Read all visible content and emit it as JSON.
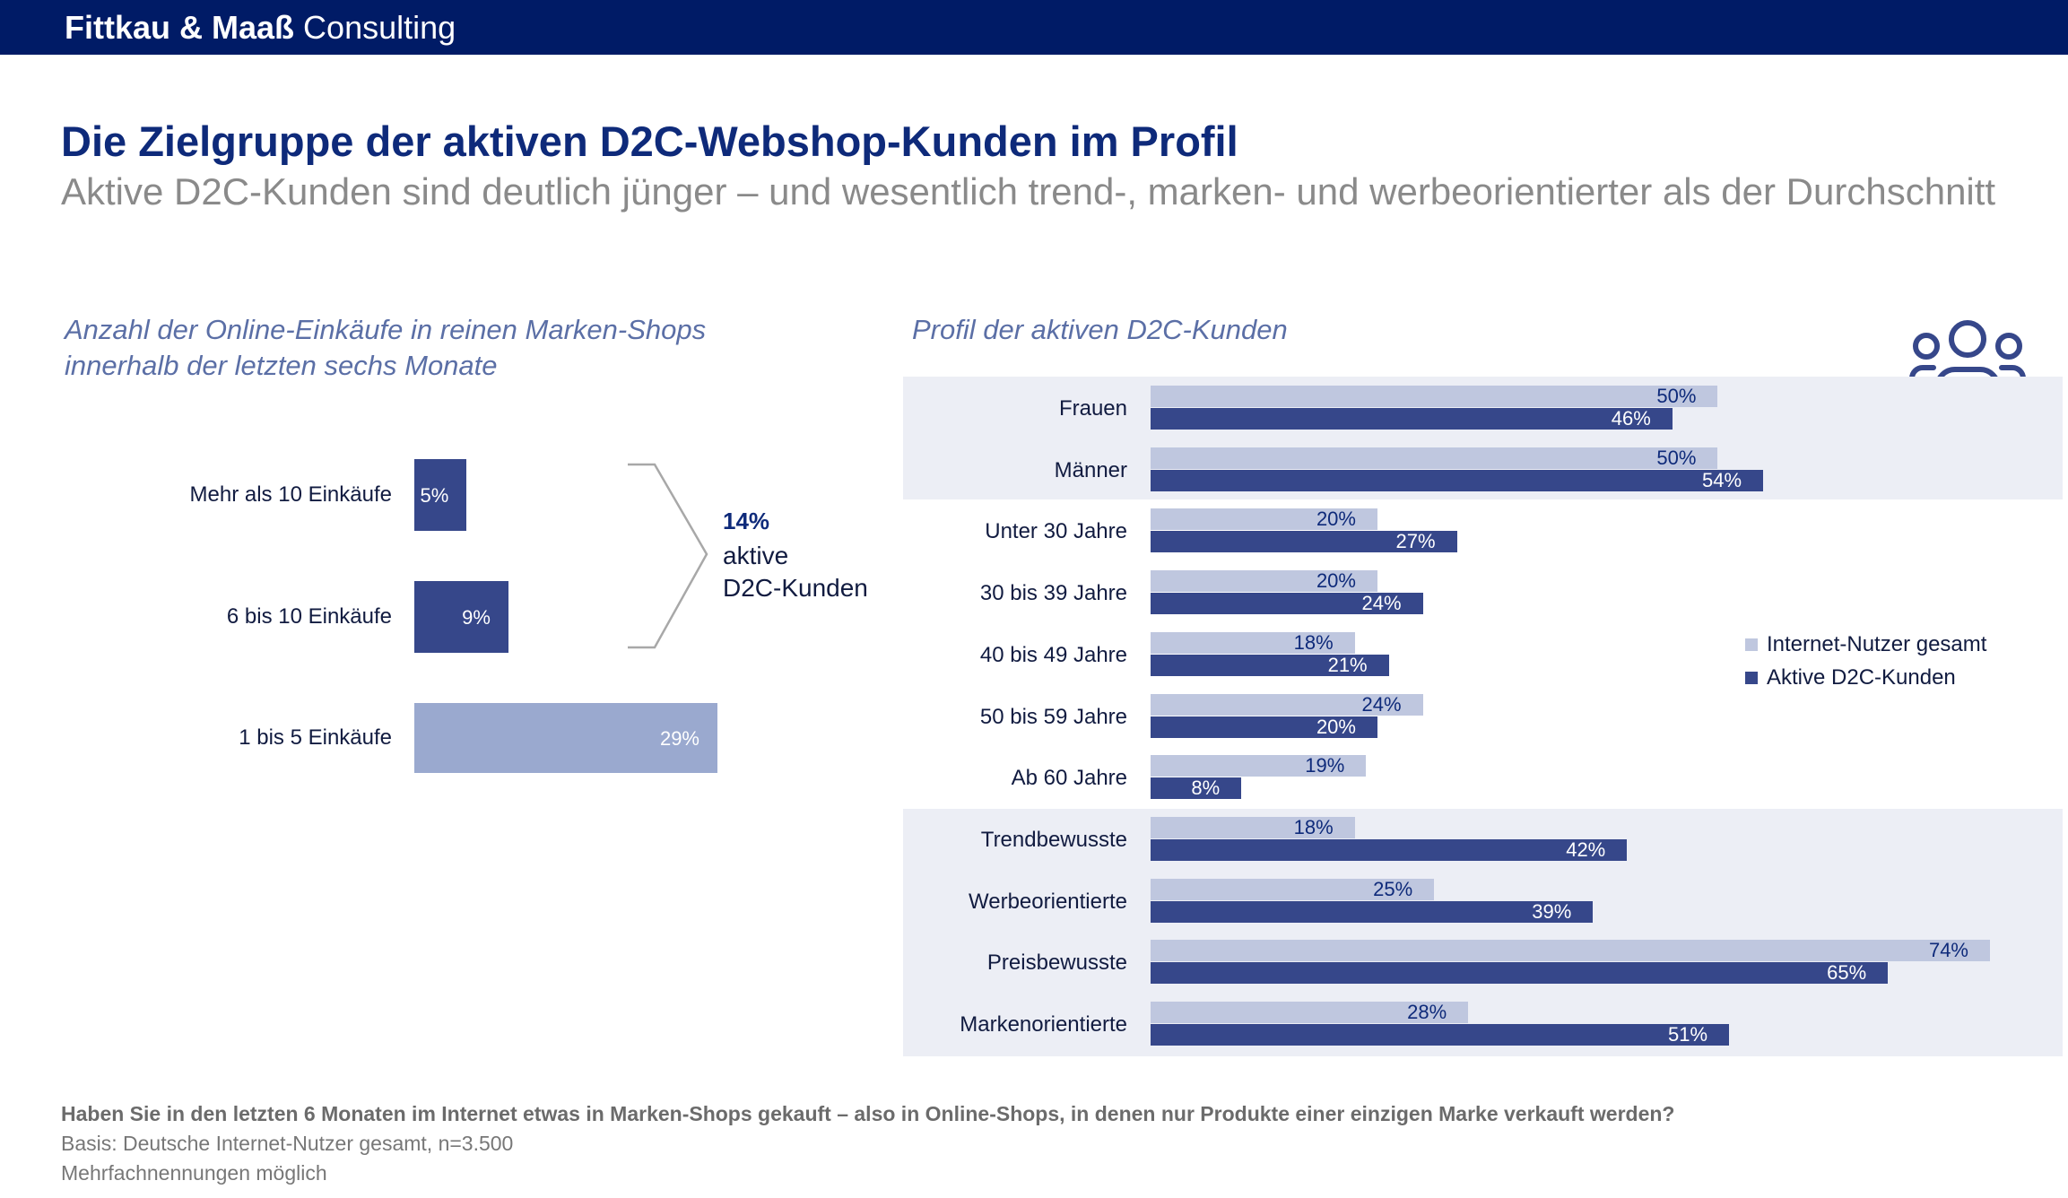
{
  "header": {
    "brand_bold": "Fittkau & Maaß",
    "brand_light": "Consulting",
    "title": "Die Zielgruppe der aktiven D2C-Webshop-Kunden im Profil",
    "subtitle": "Aktive D2C-Kunden sind deutlich jünger – und wesentlich trend-, marken- und werbeorientierter als der Durchschnitt"
  },
  "left_section": {
    "title_line1": "Anzahl der Online-Einkäufe in reinen Marken-Shops",
    "title_line2": "innerhalb der letzten sechs Monate",
    "total_value": "14%",
    "total_label_line1": "aktive",
    "total_label_line2": "D2C-Kunden"
  },
  "right_section": {
    "title": "Profil der aktiven D2C-Kunden",
    "icon": "users-group-icon"
  },
  "legend": {
    "items": [
      "Internet-Nutzer gesamt",
      "Aktive D2C-Kunden"
    ]
  },
  "footer": {
    "question": "Haben Sie in den letzten 6 Monaten im Internet etwas in Marken-Shops gekauft – also in Online-Shops, in denen nur Produkte einer einzigen Marke verkauft werden?",
    "basis": "Basis: Deutsche Internet-Nutzer gesamt, n=3.500",
    "note": "Mehrfachnennungen möglich"
  },
  "colors": {
    "brand_navy": "#001b66",
    "title_blue": "#0e2a7a",
    "dark_bar": "#36478a",
    "light_bar": "#bfc7df",
    "left_light_bar": "#9aa9cf",
    "band": "#eceef5"
  },
  "chart_data": [
    {
      "type": "bar",
      "orientation": "horizontal",
      "categories": [
        "Mehr als 10 Einkäufe",
        "6 bis 10 Einkäufe",
        "1 bis 5 Einkäufe"
      ],
      "values": [
        5,
        9,
        29
      ],
      "labels": [
        "5%",
        "9%",
        "29%"
      ],
      "unit": "%",
      "xlim": [
        0,
        29
      ]
    },
    {
      "type": "bar",
      "orientation": "horizontal",
      "categories": [
        "Frauen",
        "Männer",
        "Unter 30 Jahre",
        "30 bis 39 Jahre",
        "40 bis 49 Jahre",
        "50 bis 59 Jahre",
        "Ab 60 Jahre",
        "Trendbewusste",
        "Werbeorientierte",
        "Preisbewusste",
        "Markenorientierte"
      ],
      "series": [
        {
          "name": "Internet-Nutzer gesamt",
          "values": [
            50,
            50,
            20,
            20,
            18,
            24,
            19,
            18,
            25,
            74,
            28
          ]
        },
        {
          "name": "Aktive D2C-Kunden",
          "values": [
            46,
            54,
            27,
            24,
            21,
            20,
            8,
            42,
            39,
            65,
            51
          ]
        }
      ],
      "unit": "%",
      "xlim": [
        0,
        74
      ],
      "legend": "right",
      "grid": false
    }
  ]
}
